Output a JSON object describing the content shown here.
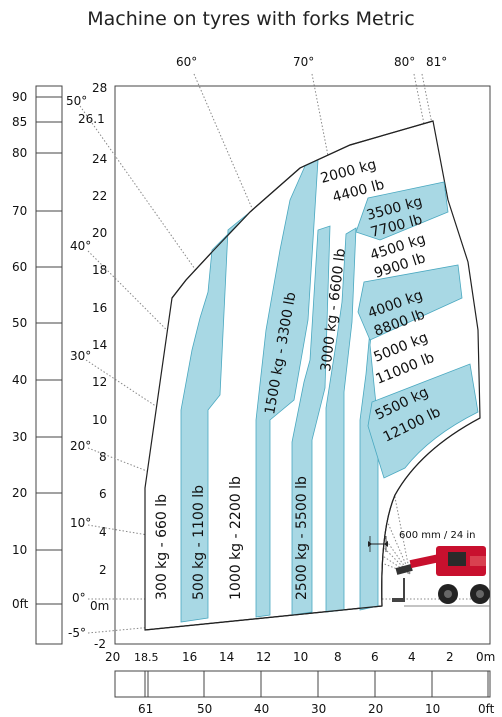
{
  "title": "Machine on tyres with forks Metric",
  "colors": {
    "zone_fill": "#a8d8e4",
    "zone_stroke": "#4aa8c0",
    "chart_line": "#222222",
    "angle_line": "#888888",
    "machine_red": "#c8102e"
  },
  "left_axis_ft": [
    "90",
    "85",
    "80",
    "70",
    "60",
    "50",
    "40",
    "30",
    "20",
    "10",
    "0ft"
  ],
  "height_axis_m": [
    "28",
    "26.1",
    "24",
    "22",
    "20",
    "18",
    "16",
    "14",
    "12",
    "10",
    "8",
    "6",
    "4",
    "2",
    "0m",
    "-2"
  ],
  "angle_labels": [
    "60°",
    "70°",
    "80°",
    "81°",
    "50°",
    "40°",
    "30°",
    "20°",
    "10°",
    "0°",
    "-5°"
  ],
  "reach_axis_m": [
    "20",
    "18.5",
    "16",
    "14",
    "12",
    "10",
    "8",
    "6",
    "4",
    "2",
    "0m"
  ],
  "reach_axis_ft": [
    "61",
    "50",
    "40",
    "30",
    "20",
    "10",
    "0ft"
  ],
  "fork_note": "600 mm / 24 in",
  "load_zones_vertical": [
    {
      "label": "300 kg - 660 lb"
    },
    {
      "label": "500 kg - 1100 lb"
    },
    {
      "label": "1000 kg - 2200 lb"
    },
    {
      "label": "1500 kg - 3300 lb"
    },
    {
      "label": "2500 kg - 5500 lb"
    },
    {
      "label": "3000 kg - 6600 lb"
    }
  ],
  "load_zones_tilted": [
    {
      "kg": "2000 kg",
      "lb": "4400 lb"
    },
    {
      "kg": "3500 kg",
      "lb": "7700 lb"
    },
    {
      "kg": "4500 kg",
      "lb": "9900 lb"
    },
    {
      "kg": "4000 kg",
      "lb": "8800 lb"
    },
    {
      "kg": "5000 kg",
      "lb": "11000 lb"
    },
    {
      "kg": "5500 kg",
      "lb": "12100 lb"
    }
  ]
}
